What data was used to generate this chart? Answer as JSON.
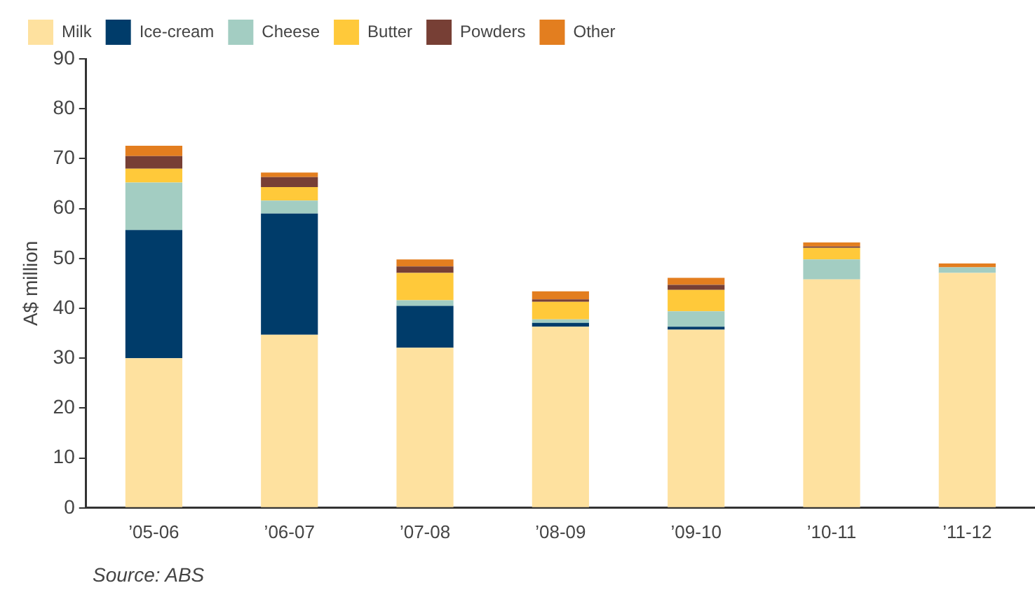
{
  "chart_data": {
    "type": "bar",
    "stacked": true,
    "ylabel": "A$ million",
    "categories": [
      "’05-06",
      "’06-07",
      "’07-08",
      "’08-09",
      "’09-10",
      "’10-11",
      "’11-12"
    ],
    "series": [
      {
        "name": "Milk",
        "color": "#fee19f",
        "values": [
          30,
          34.7,
          32.1,
          36.3,
          35.7,
          45.8,
          47.1
        ]
      },
      {
        "name": "Ice-cream",
        "color": "#003c6a",
        "values": [
          25.7,
          24.3,
          8.4,
          0.8,
          0.6,
          0,
          0
        ]
      },
      {
        "name": "Cheese",
        "color": "#a3cdc2",
        "values": [
          9.5,
          2.6,
          1.1,
          0.7,
          3.1,
          4.0,
          1.1
        ]
      },
      {
        "name": "Butter",
        "color": "#ffc93a",
        "values": [
          2.8,
          2.7,
          5.5,
          3.5,
          4.3,
          2.3,
          0
        ]
      },
      {
        "name": "Powders",
        "color": "#773f35",
        "values": [
          2.5,
          2.0,
          1.3,
          0.5,
          1.0,
          0.3,
          0
        ]
      },
      {
        "name": "Other",
        "color": "#e37e1f",
        "values": [
          2.1,
          0.9,
          1.4,
          1.6,
          1.4,
          0.8,
          0.8
        ]
      }
    ],
    "ylim": [
      0,
      90
    ],
    "yticks": [
      0,
      10,
      20,
      30,
      40,
      50,
      60,
      70,
      80,
      90
    ],
    "grid": false,
    "legend": "top left",
    "annotations": [
      "Source: ABS"
    ]
  }
}
